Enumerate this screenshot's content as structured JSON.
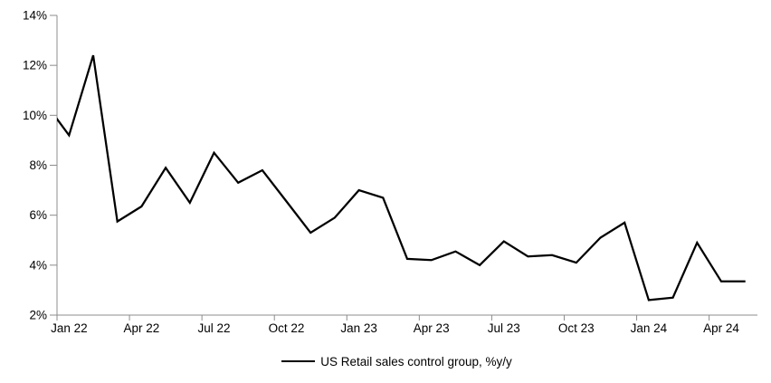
{
  "chart_data": {
    "type": "line",
    "title": "",
    "legend": "US Retail sales control group, %y/y",
    "first_point_clipped_at_left_axis": true,
    "months": [
      "Dec 21",
      "Jan 22",
      "Feb 22",
      "Mar 22",
      "Apr 22",
      "May 22",
      "Jun 22",
      "Jul 22",
      "Aug 22",
      "Sep 22",
      "Oct 22",
      "Nov 22",
      "Dec 22",
      "Jan 23",
      "Feb 23",
      "Mar 23",
      "Apr 23",
      "May 23",
      "Jun 23",
      "Jul 23",
      "Aug 23",
      "Sep 23",
      "Oct 23",
      "Nov 23",
      "Dec 23",
      "Jan 24",
      "Feb 24",
      "Mar 24",
      "Apr 24",
      "May 24"
    ],
    "values": [
      10.5,
      9.2,
      12.4,
      5.75,
      6.35,
      7.9,
      6.5,
      8.5,
      7.3,
      7.8,
      6.55,
      5.3,
      5.9,
      7.0,
      6.7,
      4.25,
      4.2,
      4.55,
      4.0,
      4.95,
      4.35,
      4.4,
      4.1,
      5.1,
      5.7,
      2.6,
      2.7,
      4.9,
      3.35,
      3.35
    ],
    "ylim": [
      2,
      14
    ],
    "y_tick_labels": [
      "2%",
      "4%",
      "6%",
      "8%",
      "10%",
      "12%",
      "14%"
    ],
    "x_tick_labels": [
      "Jan 22",
      "Apr 22",
      "Jul 22",
      "Oct 22",
      "Jan 23",
      "Apr 23",
      "Jul 23",
      "Oct 23",
      "Jan 24",
      "Apr 24"
    ],
    "x_tick_label_month_indices": [
      1,
      4,
      7,
      10,
      13,
      16,
      19,
      22,
      25,
      28
    ],
    "grid": "off",
    "legend_position": "bottom-center",
    "colors": {
      "series_line": "#000000",
      "axis_line": "#8c8c8c",
      "tick_label_text": "#000000"
    }
  }
}
